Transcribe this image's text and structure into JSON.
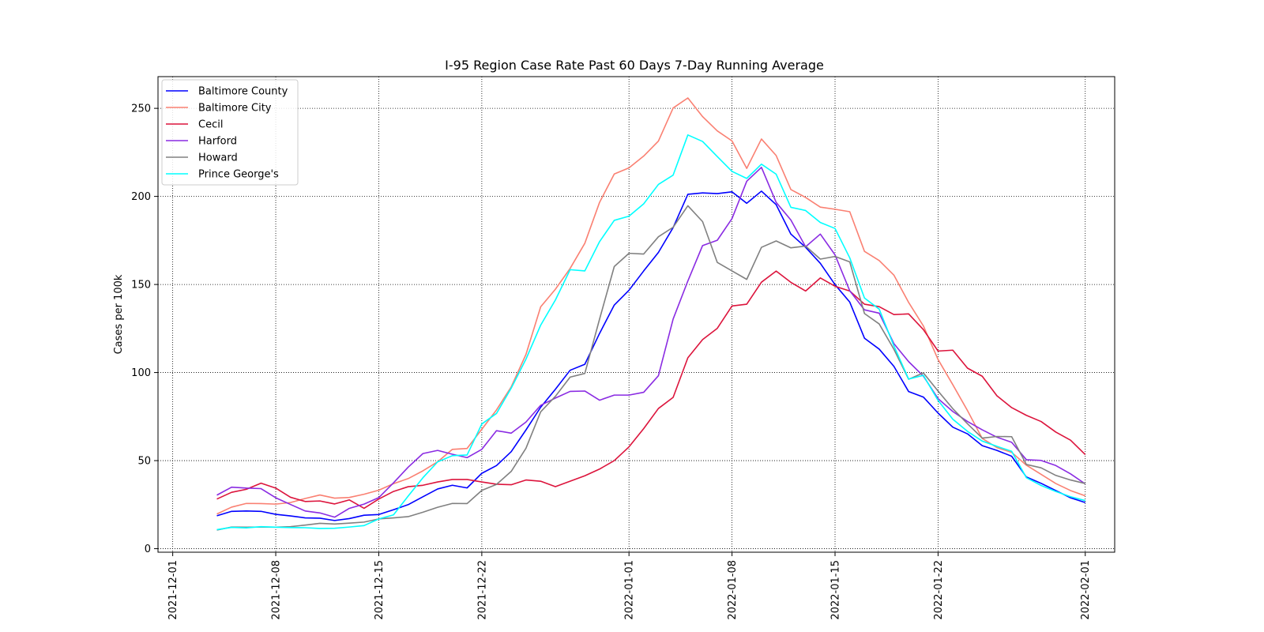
{
  "chart_data": {
    "type": "line",
    "title": "I-95 Region Case Rate  Past 60 Days 7-Day Running Average",
    "xlabel": "",
    "ylabel": "Cases per 100k",
    "xlim": [
      "2021-11-30",
      "2022-02-03"
    ],
    "ylim": [
      -2,
      268
    ],
    "yticks": [
      0,
      50,
      100,
      150,
      200,
      250
    ],
    "xticks": [
      "2021-12-01",
      "2021-12-08",
      "2021-12-15",
      "2021-12-22",
      "2022-01-01",
      "2022-01-08",
      "2022-01-15",
      "2022-01-22",
      "2022-02-01"
    ],
    "grid": true,
    "legend_position": "upper-left",
    "x": [
      "2021-12-04",
      "2021-12-05",
      "2021-12-06",
      "2021-12-07",
      "2021-12-08",
      "2021-12-09",
      "2021-12-10",
      "2021-12-11",
      "2021-12-12",
      "2021-12-13",
      "2021-12-14",
      "2021-12-15",
      "2021-12-16",
      "2021-12-17",
      "2021-12-18",
      "2021-12-19",
      "2021-12-20",
      "2021-12-21",
      "2021-12-22",
      "2021-12-23",
      "2021-12-24",
      "2021-12-25",
      "2021-12-26",
      "2021-12-27",
      "2021-12-28",
      "2021-12-29",
      "2021-12-30",
      "2021-12-31",
      "2022-01-01",
      "2022-01-02",
      "2022-01-03",
      "2022-01-04",
      "2022-01-05",
      "2022-01-06",
      "2022-01-07",
      "2022-01-08",
      "2022-01-09",
      "2022-01-10",
      "2022-01-11",
      "2022-01-12",
      "2022-01-13",
      "2022-01-14",
      "2022-01-15",
      "2022-01-16",
      "2022-01-17",
      "2022-01-18",
      "2022-01-19",
      "2022-01-20",
      "2022-01-21",
      "2022-01-22",
      "2022-01-23",
      "2022-01-24",
      "2022-01-25",
      "2022-01-26",
      "2022-01-27",
      "2022-01-28",
      "2022-01-29",
      "2022-01-30",
      "2022-01-31",
      "2022-02-01"
    ],
    "series": [
      {
        "name": "Baltimore County",
        "color": "#0000ff",
        "values": [
          18.7,
          21.2,
          21.4,
          21.2,
          19.5,
          18.6,
          17.5,
          17.3,
          16.0,
          17.1,
          19.0,
          19.4,
          22.1,
          25.0,
          29.5,
          33.9,
          36.0,
          34.5,
          42.8,
          47.2,
          55.1,
          67.4,
          80.3,
          90.5,
          101.3,
          104.7,
          122.2,
          138.3,
          146.7,
          157.7,
          168.2,
          182.3,
          201.2,
          202.0,
          201.6,
          202.6,
          196.1,
          203.0,
          195.3,
          178.6,
          171.1,
          162.0,
          149.9,
          140.0,
          119.5,
          113.3,
          103.5,
          89.2,
          86.1,
          77.0,
          69.0,
          65.2,
          58.5,
          55.8,
          52.5,
          40.7,
          37.1,
          33.0,
          28.9,
          26.2
        ]
      },
      {
        "name": "Baltimore City",
        "color": "#fa8072",
        "values": [
          19.7,
          23.6,
          25.7,
          25.6,
          25.3,
          26.2,
          28.5,
          30.5,
          28.7,
          29.1,
          30.9,
          33.2,
          36.9,
          39.8,
          44.2,
          49.3,
          56.4,
          56.9,
          67.8,
          78.8,
          91.9,
          110.3,
          137.3,
          147.3,
          159.1,
          173.4,
          196.6,
          212.7,
          216.2,
          222.9,
          231.4,
          250.2,
          255.9,
          245.3,
          237.2,
          231.5,
          215.9,
          232.6,
          223.2,
          203.9,
          199.4,
          193.9,
          192.7,
          191.3,
          168.8,
          163.6,
          155.3,
          139.8,
          126.5,
          107.4,
          93.1,
          78.4,
          62.6,
          57.4,
          54.7,
          47.4,
          42.2,
          37.0,
          33.0,
          30.0
        ]
      },
      {
        "name": "Cecil",
        "color": "#dc143c",
        "values": [
          28.2,
          32.0,
          33.7,
          37.2,
          34.4,
          29.2,
          26.8,
          27.1,
          25.4,
          27.7,
          22.9,
          28.2,
          32.5,
          35.2,
          36.0,
          37.9,
          39.3,
          39.3,
          37.9,
          36.6,
          36.3,
          39.0,
          38.3,
          35.2,
          38.3,
          41.4,
          45.2,
          50.0,
          57.8,
          68.2,
          79.6,
          85.9,
          108.4,
          118.7,
          125.1,
          137.8,
          138.8,
          151.3,
          157.6,
          151.2,
          146.3,
          153.7,
          149.0,
          146.3,
          138.8,
          137.4,
          132.9,
          133.3,
          124.4,
          112.2,
          112.7,
          102.5,
          97.9,
          86.8,
          80.1,
          75.7,
          72.2,
          66.2,
          61.6,
          53.4
        ]
      },
      {
        "name": "Harford",
        "color": "#8a2be2",
        "values": [
          30.4,
          34.9,
          34.4,
          34.1,
          28.9,
          25.1,
          21.4,
          20.3,
          17.9,
          22.9,
          25.3,
          29.0,
          37.4,
          46.3,
          54.0,
          55.8,
          53.6,
          51.7,
          56.4,
          67.0,
          65.6,
          71.9,
          81.4,
          85.5,
          89.3,
          89.5,
          84.3,
          87.2,
          87.2,
          88.8,
          98.2,
          130.4,
          152.0,
          172.1,
          175.1,
          187.4,
          208.6,
          216.5,
          196.6,
          186.6,
          171.4,
          178.6,
          166.8,
          146.4,
          135.6,
          133.7,
          116.4,
          106.2,
          98.0,
          85.2,
          77.9,
          72.2,
          67.5,
          63.3,
          60.4,
          50.5,
          50.1,
          47.2,
          42.5,
          36.8
        ]
      },
      {
        "name": "Howard",
        "color": "#808080",
        "values": [
          10.6,
          12.3,
          12.2,
          12.3,
          12.2,
          12.5,
          13.4,
          14.4,
          14.0,
          14.5,
          15.1,
          16.9,
          17.5,
          18.2,
          20.7,
          23.5,
          25.7,
          25.6,
          33.1,
          36.5,
          43.9,
          57.0,
          77.7,
          86.5,
          97.4,
          99.5,
          130.3,
          160.2,
          167.7,
          167.3,
          177.1,
          182.5,
          194.7,
          185.7,
          162.5,
          157.7,
          152.9,
          171.1,
          174.7,
          170.8,
          171.8,
          164.4,
          165.9,
          162.8,
          133.5,
          127.6,
          113.2,
          96.2,
          99.8,
          89.5,
          79.5,
          70.9,
          62.8,
          63.7,
          63.6,
          47.8,
          45.9,
          41.6,
          39.0,
          37.0
        ]
      },
      {
        "name": "Prince George's",
        "color": "#00ffff",
        "values": [
          10.8,
          12.1,
          11.8,
          12.5,
          12.2,
          12.0,
          11.9,
          11.5,
          11.6,
          12.3,
          13.1,
          16.9,
          19.2,
          29.9,
          40.3,
          49.3,
          52.8,
          53.2,
          70.8,
          76.8,
          91.2,
          107.6,
          126.9,
          141.2,
          158.4,
          157.7,
          174.3,
          186.4,
          188.8,
          195.8,
          206.8,
          212.1,
          234.9,
          231.2,
          222.6,
          214.2,
          210.2,
          218.3,
          212.6,
          193.8,
          192.0,
          185.2,
          181.8,
          165.1,
          142.3,
          136.0,
          115.1,
          96.3,
          98.4,
          84.2,
          73.5,
          66.6,
          61.1,
          58.1,
          55.3,
          40.3,
          35.9,
          32.5,
          29.5,
          27.3
        ]
      }
    ]
  }
}
